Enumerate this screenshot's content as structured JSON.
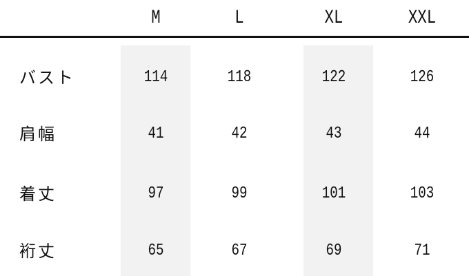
{
  "columns": [
    "M",
    "L",
    "XL",
    "XXL"
  ],
  "rows": [
    {
      "label": "バスト",
      "values": [
        "114",
        "118",
        "122",
        "126"
      ]
    },
    {
      "label": "肩幅",
      "values": [
        "41",
        "42",
        "43",
        "44"
      ]
    },
    {
      "label": "着丈",
      "values": [
        "97",
        "99",
        "101",
        "103"
      ]
    },
    {
      "label": "裄丈",
      "values": [
        "65",
        "67",
        "69",
        "71"
      ]
    }
  ],
  "colors": {
    "shade": "#f2f2f2",
    "rule": "#111111"
  }
}
